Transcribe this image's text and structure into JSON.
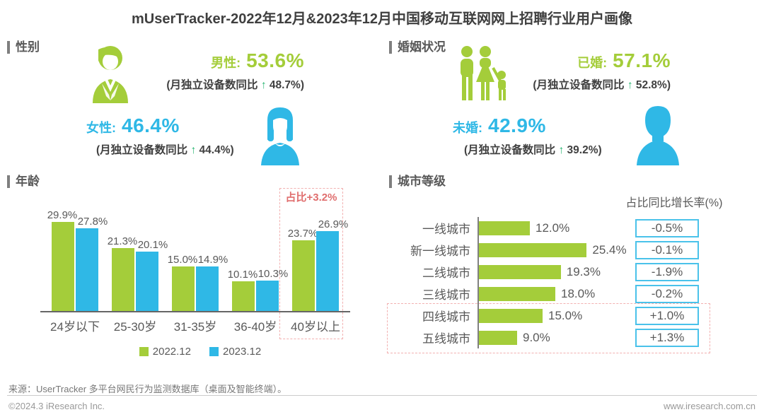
{
  "title": "mUserTracker-2022年12月&2023年12月中国移动互联网网上招聘行业用户画像",
  "colors": {
    "green": "#a4cd3a",
    "blue": "#2fb8e6",
    "red_text": "#e06e6e",
    "red_dash": "#f2b0b0",
    "rate_box_border": "#4ac2ea",
    "arrow_green": "#2bb673",
    "text_gray": "#595959"
  },
  "sections": {
    "gender": "性别",
    "marital": "婚姻状况",
    "age": "年龄",
    "city": "城市等级"
  },
  "icons": {
    "male": "male-icon",
    "female": "female-icon",
    "married": "family-icon",
    "unmarried": "person-icon"
  },
  "gender": {
    "male": {
      "label": "男性:",
      "value": "53.6%",
      "note": "(月独立设备数同比",
      "arrow": "↑",
      "note_value": "48.7%)"
    },
    "female": {
      "label": "女性:",
      "value": "46.4%",
      "note": "(月独立设备数同比",
      "arrow": "↑",
      "note_value": "44.4%)"
    }
  },
  "marital": {
    "married": {
      "label": "已婚:",
      "value": "57.1%",
      "note": "(月独立设备数同比",
      "arrow": "↑",
      "note_value": "52.8%)"
    },
    "unmarried": {
      "label": "未婚:",
      "value": "42.9%",
      "note": "(月独立设备数同比",
      "arrow": "↑",
      "note_value": "39.2%)"
    }
  },
  "chart_data": [
    {
      "type": "bar",
      "title": "年龄",
      "categories": [
        "24岁以下",
        "25-30岁",
        "31-35岁",
        "36-40岁",
        "40岁以上"
      ],
      "series": [
        {
          "name": "2022.12",
          "values": [
            29.9,
            21.3,
            15.0,
            10.1,
            23.7
          ],
          "labels": [
            "29.9%",
            "21.3%",
            "15.0%",
            "10.1%",
            "23.7%"
          ]
        },
        {
          "name": "2023.12",
          "values": [
            27.8,
            20.1,
            14.9,
            10.3,
            26.9
          ],
          "labels": [
            "27.8%",
            "20.1%",
            "14.9%",
            "10.3%",
            "26.9%"
          ]
        }
      ],
      "unit": "%",
      "ylim": [
        0,
        32
      ],
      "grid": false,
      "legend_position": "bottom",
      "annotation": {
        "text": "占比+3.2%",
        "target": "40岁以上"
      }
    },
    {
      "type": "bar-horizontal",
      "title": "城市等级",
      "growth_header": "占比同比增长率(%)",
      "categories": [
        "一线城市",
        "新一线城市",
        "二线城市",
        "三线城市",
        "四线城市",
        "五线城市"
      ],
      "values": [
        12.0,
        25.4,
        19.3,
        18.0,
        15.0,
        9.0
      ],
      "labels": [
        "12.0%",
        "25.4%",
        "19.3%",
        "18.0%",
        "15.0%",
        "9.0%"
      ],
      "growth": [
        "-0.5%",
        "-0.1%",
        "-1.9%",
        "-0.2%",
        "+1.0%",
        "+1.3%"
      ],
      "highlight_categories": [
        "四线城市",
        "五线城市"
      ],
      "unit": "%"
    }
  ],
  "footer": {
    "source": "来源：UserTracker 多平台网民行为监测数据库（桌面及智能终端）。",
    "copyright": "©2024.3 iResearch Inc.",
    "website": "www.iresearch.com.cn"
  }
}
